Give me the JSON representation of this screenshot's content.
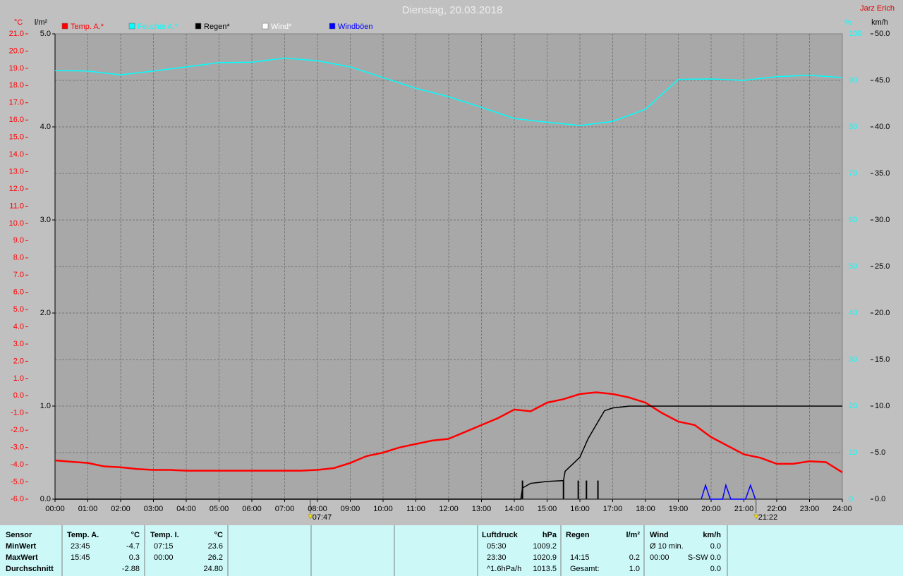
{
  "chart_data": {
    "type": "line",
    "title": "Dienstag, 20.03.2018",
    "author": "Jarz Erich",
    "units": {
      "y": "°C",
      "y2": "l/m²",
      "y3": "%",
      "y4": "km/h"
    },
    "xlim": [
      0,
      24
    ],
    "xticks": [
      {
        "value": 0,
        "label": "00:00"
      },
      {
        "value": 1,
        "label": "01:00"
      },
      {
        "value": 2,
        "label": "02:00"
      },
      {
        "value": 3,
        "label": "03:00"
      },
      {
        "value": 4,
        "label": "04:00"
      },
      {
        "value": 5,
        "label": "05:00"
      },
      {
        "value": 6,
        "label": "06:00"
      },
      {
        "value": 7,
        "label": "07:00"
      },
      {
        "value": 8,
        "label": "08:00"
      },
      {
        "value": 9,
        "label": "09:00"
      },
      {
        "value": 10,
        "label": "10:00"
      },
      {
        "value": 11,
        "label": "11:00"
      },
      {
        "value": 12,
        "label": "12:00"
      },
      {
        "value": 13,
        "label": "13:00"
      },
      {
        "value": 14,
        "label": "14:00"
      },
      {
        "value": 15,
        "label": "15:00"
      },
      {
        "value": 16,
        "label": "16:00"
      },
      {
        "value": 17,
        "label": "17:00"
      },
      {
        "value": 18,
        "label": "18:00"
      },
      {
        "value": 19,
        "label": "19:00"
      },
      {
        "value": 20,
        "label": "20:00"
      },
      {
        "value": 21,
        "label": "21:00"
      },
      {
        "value": 22,
        "label": "22:00"
      },
      {
        "value": 23,
        "label": "23:00"
      },
      {
        "value": 24,
        "label": "24:00"
      }
    ],
    "ylim": [
      -6,
      21
    ],
    "yticks": [
      {
        "value": -6,
        "label": "-6.0"
      },
      {
        "value": -5,
        "label": "-5.0"
      },
      {
        "value": -4,
        "label": "-4.0"
      },
      {
        "value": -3,
        "label": "-3.0"
      },
      {
        "value": -2,
        "label": "-2.0"
      },
      {
        "value": -1,
        "label": "-1.0"
      },
      {
        "value": 0,
        "label": "0.0"
      },
      {
        "value": 1,
        "label": "1.0"
      },
      {
        "value": 2,
        "label": "2.0"
      },
      {
        "value": 3,
        "label": "3.0"
      },
      {
        "value": 4,
        "label": "4.0"
      },
      {
        "value": 5,
        "label": "5.0"
      },
      {
        "value": 6,
        "label": "6.0"
      },
      {
        "value": 7,
        "label": "7.0"
      },
      {
        "value": 8,
        "label": "8.0"
      },
      {
        "value": 9,
        "label": "9.0"
      },
      {
        "value": 10,
        "label": "10.0"
      },
      {
        "value": 11,
        "label": "11.0"
      },
      {
        "value": 12,
        "label": "12.0"
      },
      {
        "value": 13,
        "label": "13.0"
      },
      {
        "value": 14,
        "label": "14.0"
      },
      {
        "value": 15,
        "label": "15.0"
      },
      {
        "value": 16,
        "label": "16.0"
      },
      {
        "value": 17,
        "label": "17.0"
      },
      {
        "value": 18,
        "label": "18.0"
      },
      {
        "value": 19,
        "label": "19.0"
      },
      {
        "value": 20,
        "label": "20.0"
      },
      {
        "value": 21,
        "label": "21.0"
      }
    ],
    "y2lim": [
      0,
      5
    ],
    "y2ticks": [
      {
        "value": 0,
        "label": "0.0"
      },
      {
        "value": 1,
        "label": "1.0"
      },
      {
        "value": 2,
        "label": "2.0"
      },
      {
        "value": 3,
        "label": "3.0"
      },
      {
        "value": 4,
        "label": "4.0"
      },
      {
        "value": 5,
        "label": "5.0"
      }
    ],
    "y3lim": [
      0,
      100
    ],
    "y3ticks": [
      0,
      10,
      20,
      30,
      40,
      50,
      60,
      70,
      80,
      90,
      100
    ],
    "y4lim": [
      0,
      50
    ],
    "y4ticks": [
      {
        "value": 0,
        "label": "0.0"
      },
      {
        "value": 5,
        "label": "5.0"
      },
      {
        "value": 10,
        "label": "10.0"
      },
      {
        "value": 15,
        "label": "15.0"
      },
      {
        "value": 20,
        "label": "20.0"
      },
      {
        "value": 25,
        "label": "25.0"
      },
      {
        "value": 30,
        "label": "30.0"
      },
      {
        "value": 35,
        "label": "35.0"
      },
      {
        "value": 40,
        "label": "40.0"
      },
      {
        "value": 45,
        "label": "45.0"
      },
      {
        "value": 50,
        "label": "50.0"
      }
    ],
    "grid": true,
    "series": [
      {
        "name": "Temp. A.*",
        "color": "#ff0000",
        "axis": "y",
        "x": [
          0,
          0.5,
          1,
          1.5,
          2,
          2.5,
          3,
          3.5,
          4,
          4.5,
          5,
          5.5,
          6,
          6.5,
          7,
          7.5,
          8,
          8.5,
          9,
          9.5,
          10,
          10.5,
          11,
          11.5,
          12,
          12.5,
          13,
          13.5,
          14,
          14.5,
          15,
          15.5,
          16,
          16.5,
          17,
          17.5,
          18,
          18.5,
          19,
          19.5,
          20,
          20.5,
          21,
          21.5,
          22,
          22.5,
          23,
          23.5,
          24
        ],
        "values": [
          -3.75,
          -3.83,
          -3.9,
          -4.1,
          -4.15,
          -4.25,
          -4.3,
          -4.3,
          -4.35,
          -4.35,
          -4.35,
          -4.35,
          -4.35,
          -4.35,
          -4.35,
          -4.35,
          -4.3,
          -4.2,
          -3.9,
          -3.5,
          -3.3,
          -3.0,
          -2.8,
          -2.6,
          -2.5,
          -2.1,
          -1.7,
          -1.3,
          -0.8,
          -0.9,
          -0.4,
          -0.2,
          0.1,
          0.2,
          0.1,
          -0.1,
          -0.4,
          -1.0,
          -1.5,
          -1.7,
          -2.4,
          -2.9,
          -3.4,
          -3.6,
          -3.95,
          -3.95,
          -3.8,
          -3.85,
          -4.45
        ]
      },
      {
        "name": "Feuchte A.*",
        "color": "#00ffff",
        "axis": "y3",
        "x": [
          0,
          1,
          2,
          3,
          4,
          5,
          6,
          7,
          8,
          9,
          10,
          11,
          12,
          13,
          14,
          15,
          16,
          17,
          18,
          19,
          20,
          21,
          22,
          23,
          24
        ],
        "values": [
          92.1,
          92,
          91.2,
          92,
          92.9,
          93.8,
          93.9,
          94.8,
          94.2,
          92.9,
          90.6,
          88.3,
          86.5,
          84.2,
          81.8,
          81,
          80.3,
          81.2,
          83.8,
          90.2,
          90.3,
          90,
          90.8,
          91.1,
          90.6
        ]
      },
      {
        "name": "Regen*",
        "color": "#000000",
        "axis": "y2",
        "x": [
          0,
          14.2,
          14.25,
          14.5,
          15,
          15.5,
          15.55,
          16,
          16.25,
          16.5,
          16.75,
          17,
          17.5,
          18,
          24
        ],
        "values": [
          0,
          0,
          0.12,
          0.17,
          0.19,
          0.2,
          0.3,
          0.45,
          0.65,
          0.8,
          0.95,
          0.98,
          1.0,
          1.0,
          1.0
        ],
        "bars_x": [
          14.25,
          15.5,
          15.95,
          16.2,
          16.55
        ],
        "bars": [
          0.2,
          0.2,
          0.2,
          0.2,
          0.2
        ]
      },
      {
        "name": "Wind*",
        "color": "#ffffff",
        "axis": "y4",
        "x": [],
        "values": []
      },
      {
        "name": "Windböen",
        "color": "#0000ff",
        "axis": "y4",
        "x": [
          19.7,
          19.83,
          19.97,
          20.35,
          20.45,
          20.6,
          21.05,
          21.2,
          21.35
        ],
        "values": [
          0,
          1.5,
          0,
          0,
          1.5,
          0,
          0,
          1.5,
          0
        ]
      }
    ],
    "annotations": [
      {
        "x": 7.78,
        "label": "07:47"
      },
      {
        "x": 21.37,
        "label": "21:22"
      }
    ]
  },
  "table": {
    "headers": [
      "Sensor",
      "Temp. A.",
      "°C",
      "Temp. I.",
      "°C",
      "Luftdruck",
      "hPa",
      "Regen",
      "l/m²",
      "Wind",
      "km/h"
    ],
    "rows": [
      [
        "MinWert",
        "23:45",
        "-4.7",
        "07:15",
        "23.6",
        "05:30",
        "1009.2",
        null,
        null,
        "Ø 10 min.",
        "0.0"
      ],
      [
        "MaxWert",
        "15:45",
        "0.3",
        "00:00",
        "26.2",
        "23:30",
        "1020.9",
        "14:15",
        "0.2",
        "00:00",
        "S-SW 0.0"
      ],
      [
        "Durchschnitt",
        null,
        "-2.88",
        null,
        "24.80",
        "^1.6hPa/h",
        "1013.5",
        "Gesamt:",
        "1.0",
        null,
        "0.0"
      ]
    ]
  }
}
